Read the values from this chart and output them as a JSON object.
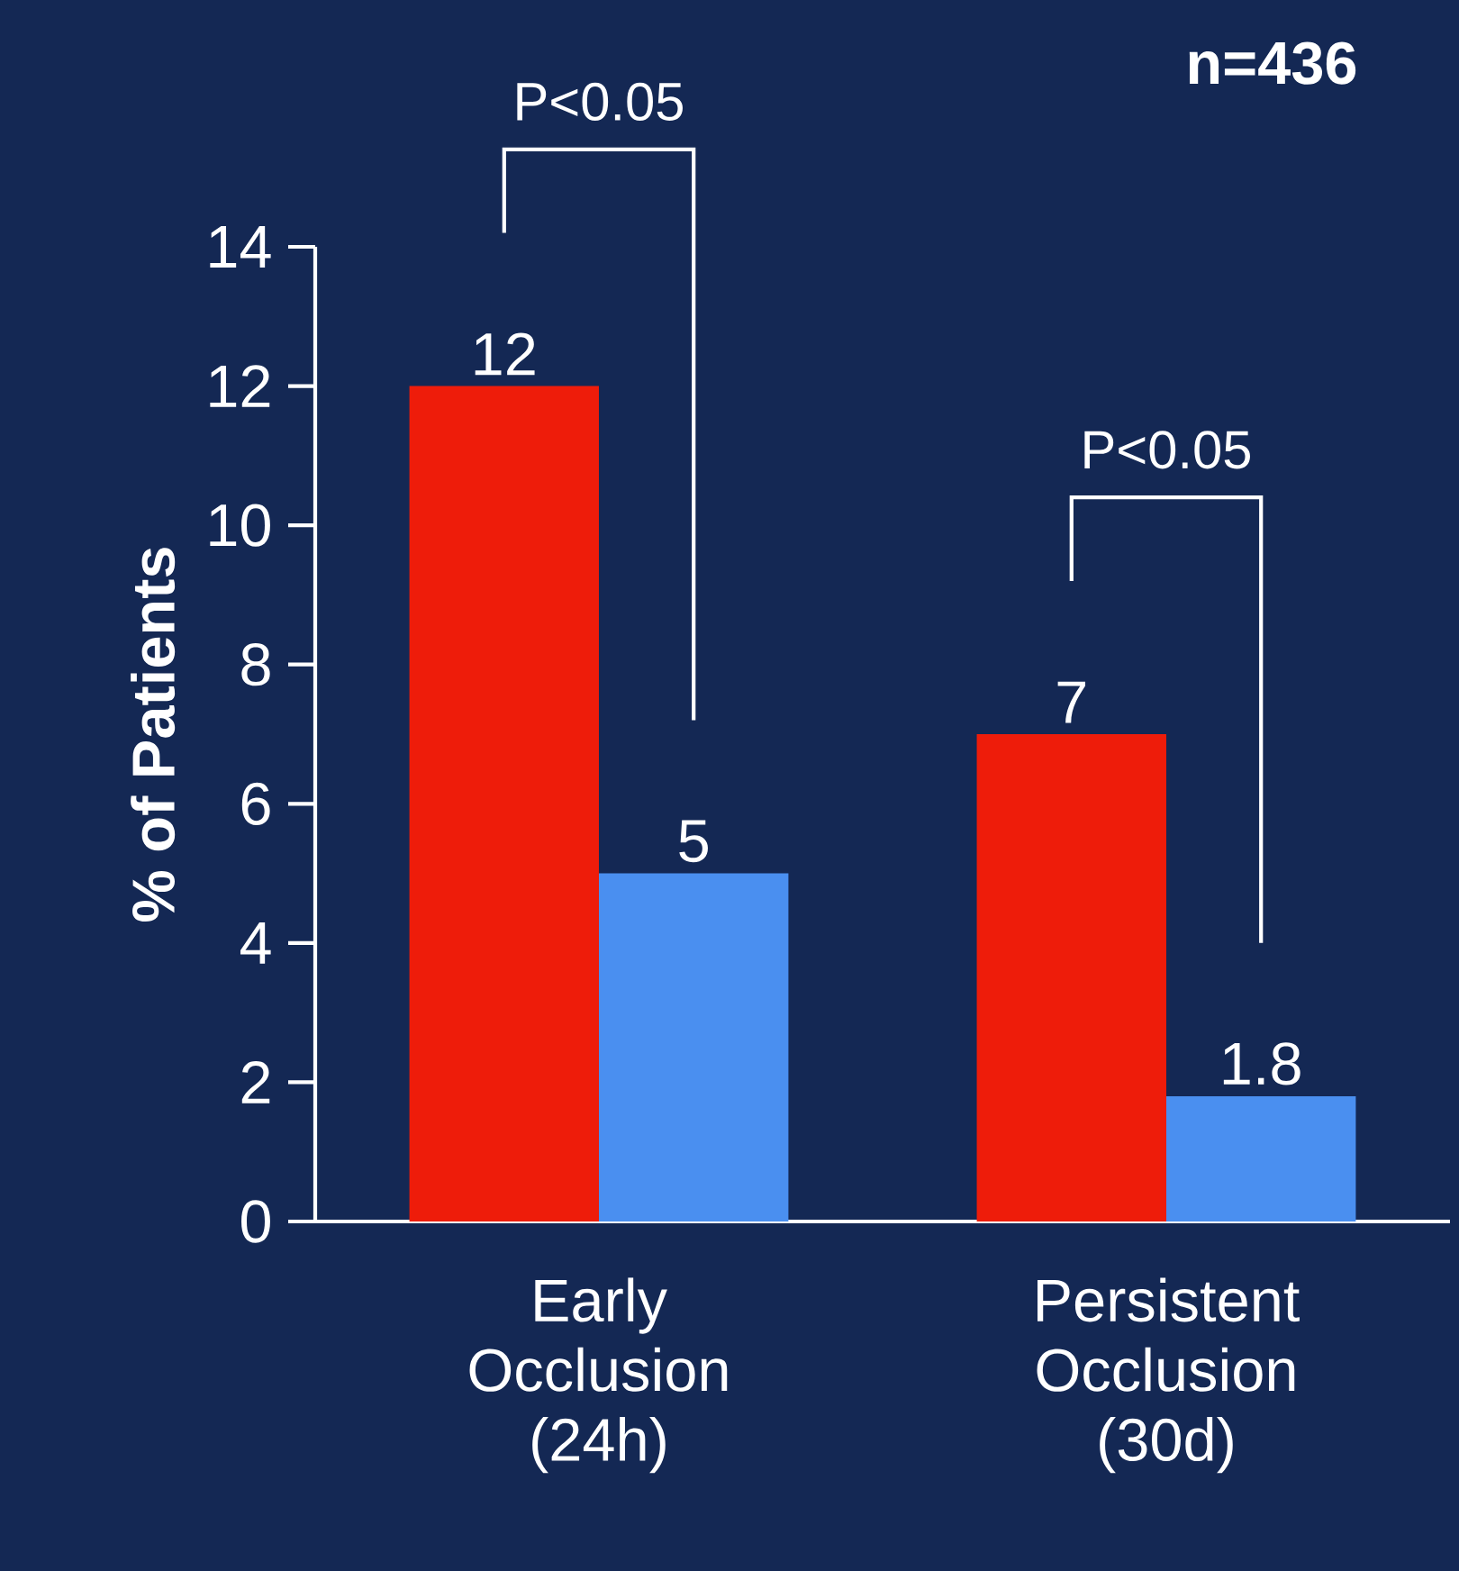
{
  "chart_data": {
    "type": "bar",
    "categories": [
      "Early Occlusion (24h)",
      "Persistent Occlusion (30d)"
    ],
    "series": [
      {
        "color": "#ee1c0a",
        "values": [
          12,
          7
        ]
      },
      {
        "color": "#4a8ff0",
        "values": [
          5,
          1.8
        ]
      }
    ],
    "ylabel": "% of Patients",
    "ylim": [
      0,
      14
    ],
    "yticks": [
      0,
      2,
      4,
      6,
      8,
      10,
      12,
      14
    ],
    "data_labels": true,
    "annotations": [
      "n=436",
      "P<0.05",
      "P<0.05"
    ]
  }
}
